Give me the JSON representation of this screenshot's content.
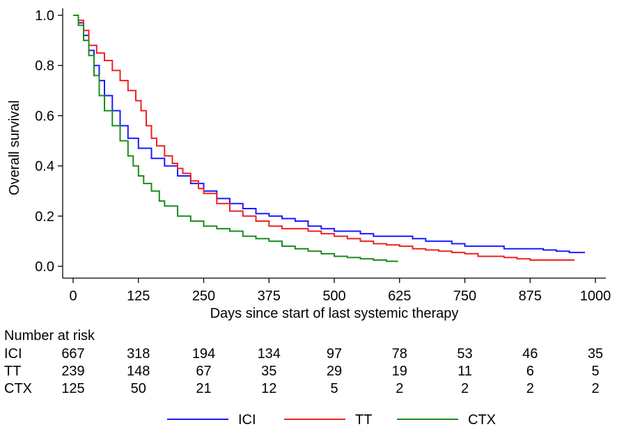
{
  "chart_data": {
    "type": "line",
    "title": "",
    "xlabel": "Days since start of last systemic therapy",
    "ylabel": "Overall survival",
    "xlim": [
      0,
      1000
    ],
    "ylim": [
      0,
      1.0
    ],
    "x_ticks": [
      0,
      125,
      250,
      375,
      500,
      625,
      750,
      875,
      1000
    ],
    "y_ticks": [
      0.0,
      0.2,
      0.4,
      0.6,
      0.8,
      1.0
    ],
    "y_tick_labels": [
      "0.0",
      "0.2",
      "0.4",
      "0.6",
      "0.8",
      "1.0"
    ],
    "grid": false,
    "legend_position": "bottom",
    "series": [
      {
        "name": "ICI",
        "color": "#1a1aff",
        "x": [
          0,
          10,
          20,
          30,
          40,
          50,
          60,
          75,
          90,
          105,
          125,
          150,
          175,
          200,
          225,
          250,
          275,
          300,
          325,
          350,
          375,
          400,
          425,
          450,
          475,
          500,
          525,
          550,
          575,
          600,
          625,
          650,
          675,
          700,
          725,
          750,
          775,
          800,
          825,
          850,
          875,
          900,
          925,
          950,
          980
        ],
        "values": [
          1.0,
          0.97,
          0.92,
          0.86,
          0.8,
          0.74,
          0.68,
          0.62,
          0.56,
          0.51,
          0.47,
          0.43,
          0.4,
          0.36,
          0.33,
          0.3,
          0.27,
          0.25,
          0.23,
          0.21,
          0.2,
          0.19,
          0.18,
          0.16,
          0.15,
          0.14,
          0.14,
          0.13,
          0.12,
          0.12,
          0.12,
          0.11,
          0.1,
          0.1,
          0.09,
          0.08,
          0.08,
          0.08,
          0.07,
          0.07,
          0.07,
          0.065,
          0.06,
          0.055,
          0.055
        ]
      },
      {
        "name": "TT",
        "color": "#ee2020",
        "x": [
          0,
          10,
          20,
          30,
          45,
          60,
          75,
          90,
          105,
          120,
          130,
          140,
          150,
          160,
          175,
          190,
          200,
          210,
          225,
          240,
          250,
          275,
          300,
          325,
          350,
          375,
          400,
          425,
          450,
          475,
          500,
          525,
          550,
          575,
          600,
          625,
          650,
          675,
          700,
          725,
          750,
          775,
          800,
          825,
          850,
          875,
          900,
          925,
          960
        ],
        "values": [
          1.0,
          0.98,
          0.94,
          0.88,
          0.85,
          0.82,
          0.78,
          0.74,
          0.7,
          0.66,
          0.62,
          0.56,
          0.51,
          0.48,
          0.44,
          0.41,
          0.39,
          0.37,
          0.34,
          0.31,
          0.29,
          0.25,
          0.22,
          0.2,
          0.18,
          0.16,
          0.15,
          0.15,
          0.14,
          0.13,
          0.12,
          0.11,
          0.1,
          0.09,
          0.085,
          0.08,
          0.07,
          0.065,
          0.06,
          0.055,
          0.05,
          0.04,
          0.04,
          0.035,
          0.03,
          0.025,
          0.025,
          0.025,
          0.025
        ]
      },
      {
        "name": "CTX",
        "color": "#1a8c1a",
        "x": [
          0,
          10,
          20,
          30,
          40,
          50,
          60,
          75,
          90,
          105,
          115,
          125,
          135,
          150,
          165,
          175,
          200,
          225,
          250,
          275,
          300,
          325,
          350,
          375,
          400,
          425,
          450,
          475,
          500,
          525,
          550,
          575,
          600,
          622
        ],
        "values": [
          1.0,
          0.96,
          0.9,
          0.84,
          0.76,
          0.68,
          0.62,
          0.56,
          0.5,
          0.44,
          0.4,
          0.36,
          0.33,
          0.3,
          0.26,
          0.24,
          0.2,
          0.18,
          0.16,
          0.15,
          0.14,
          0.12,
          0.11,
          0.1,
          0.08,
          0.07,
          0.06,
          0.05,
          0.04,
          0.035,
          0.03,
          0.025,
          0.02,
          0.02
        ]
      }
    ]
  },
  "risk_table": {
    "title": "Number at risk",
    "rows": [
      {
        "label": "ICI",
        "values": [
          "667",
          "318",
          "194",
          "134",
          "97",
          "78",
          "53",
          "46",
          "35"
        ]
      },
      {
        "label": "TT",
        "values": [
          "239",
          "148",
          "67",
          "35",
          "29",
          "19",
          "11",
          "6",
          "5"
        ]
      },
      {
        "label": "CTX",
        "values": [
          "125",
          "50",
          "21",
          "12",
          "5",
          "2",
          "2",
          "2",
          "2"
        ]
      }
    ]
  }
}
